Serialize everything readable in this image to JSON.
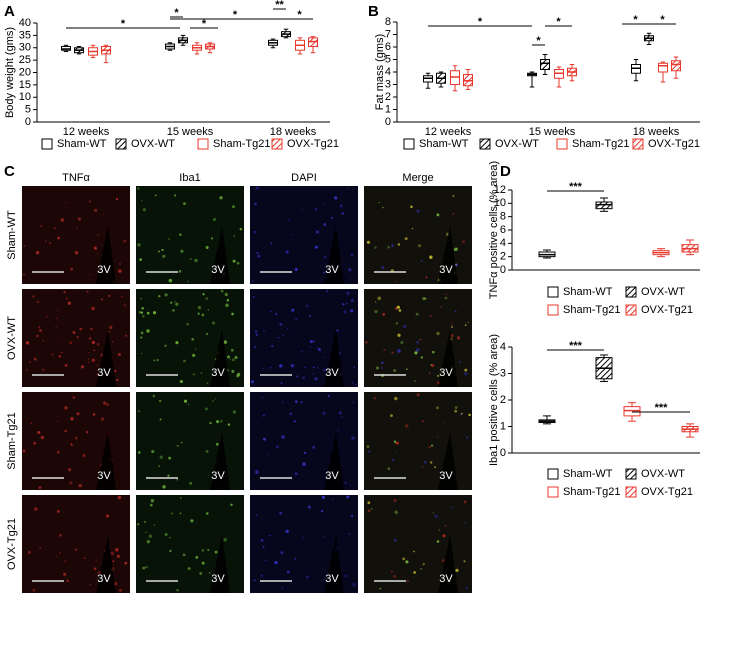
{
  "panel_labels": [
    "A",
    "B",
    "C",
    "D"
  ],
  "micrographs": {
    "columns": [
      "TNFα",
      "Iba1",
      "DAPI",
      "Merge"
    ],
    "rows": [
      "Sham-WT",
      "OVX-WT",
      "Sham-Tg21",
      "OVX-Tg21"
    ],
    "region_label": "3V"
  },
  "chart_data": [
    {
      "type": "box",
      "ylabel": "Body weight (gms)",
      "categories": [
        "12 weeks",
        "15 weeks",
        "18 weeks"
      ],
      "ylim": [
        0,
        40
      ],
      "yticks": [
        0,
        5,
        10,
        15,
        20,
        25,
        30,
        35,
        40
      ],
      "series": [
        {
          "name": "Sham-WT",
          "color": "#000000",
          "hatch": false,
          "min": [
            28.5,
            29,
            30
          ],
          "q1": [
            29,
            29.5,
            31
          ],
          "median": [
            29.5,
            30.5,
            32
          ],
          "q3": [
            30.5,
            31.5,
            33
          ],
          "max": [
            31,
            32,
            33.5
          ]
        },
        {
          "name": "OVX-WT",
          "color": "#000000",
          "hatch": true,
          "min": [
            27.5,
            31,
            34
          ],
          "q1": [
            28,
            32,
            34.5
          ],
          "median": [
            29,
            33,
            35.5
          ],
          "q3": [
            30,
            34,
            36.5
          ],
          "max": [
            30.5,
            35,
            37.5
          ]
        },
        {
          "name": "Sham-Tg21",
          "color": "#e8372c",
          "hatch": false,
          "min": [
            26,
            27.5,
            27.5
          ],
          "q1": [
            27,
            29,
            29
          ],
          "median": [
            28.5,
            30,
            31
          ],
          "q3": [
            30,
            31,
            33
          ],
          "max": [
            31,
            32,
            34
          ]
        },
        {
          "name": "OVX-Tg21",
          "color": "#e8372c",
          "hatch": true,
          "min": [
            24,
            28,
            28
          ],
          "q1": [
            27.5,
            29.5,
            30.5
          ],
          "median": [
            29,
            30.5,
            32.5
          ],
          "q3": [
            30.5,
            31.5,
            34
          ],
          "max": [
            31,
            32,
            34.5
          ]
        }
      ],
      "annotations": [
        "*",
        "*",
        "*",
        "*",
        "**",
        "*"
      ]
    },
    {
      "type": "box",
      "ylabel": "Fat mass (gms)",
      "categories": [
        "12 weeks",
        "15 weeks",
        "18 weeks"
      ],
      "ylim": [
        0,
        8
      ],
      "yticks": [
        0,
        1,
        2,
        3,
        4,
        5,
        6,
        7,
        8
      ],
      "series": [
        {
          "name": "Sham-WT",
          "color": "#000000",
          "hatch": false,
          "min": [
            2.7,
            2.8,
            3.3
          ],
          "q1": [
            3.2,
            3.7,
            3.9
          ],
          "median": [
            3.5,
            3.8,
            4.3
          ],
          "q3": [
            3.7,
            3.9,
            4.6
          ],
          "max": [
            3.9,
            4,
            5
          ]
        },
        {
          "name": "OVX-WT",
          "color": "#000000",
          "hatch": true,
          "min": [
            2.8,
            3.8,
            6.2
          ],
          "q1": [
            3.1,
            4.2,
            6.5
          ],
          "median": [
            3.5,
            4.7,
            6.7
          ],
          "q3": [
            3.9,
            5,
            6.9
          ],
          "max": [
            4,
            5.4,
            7.1
          ]
        },
        {
          "name": "Sham-Tg21",
          "color": "#e8372c",
          "hatch": false,
          "min": [
            2.5,
            2.8,
            3.2
          ],
          "q1": [
            3,
            3.5,
            4
          ],
          "median": [
            3.6,
            3.9,
            4.5
          ],
          "q3": [
            4.1,
            4.2,
            4.7
          ],
          "max": [
            4.5,
            4.4,
            4.8
          ]
        },
        {
          "name": "OVX-Tg21",
          "color": "#e8372c",
          "hatch": true,
          "min": [
            2.6,
            3.3,
            3.5
          ],
          "q1": [
            2.9,
            3.7,
            4.1
          ],
          "median": [
            3.3,
            4,
            4.6
          ],
          "q3": [
            3.8,
            4.3,
            4.9
          ],
          "max": [
            4.2,
            4.6,
            5.2
          ]
        }
      ],
      "annotations": [
        "*",
        "*",
        "*",
        "*",
        "*"
      ]
    },
    {
      "type": "box",
      "ylabel": "TNFα positive cells (% area)",
      "categories": [
        null
      ],
      "ylim": [
        0,
        12
      ],
      "yticks": [
        0,
        2,
        4,
        6,
        8,
        10,
        12
      ],
      "series": [
        {
          "name": "Sham-WT",
          "color": "#000000",
          "hatch": false,
          "min": [
            1.8
          ],
          "q1": [
            2
          ],
          "median": [
            2.3
          ],
          "q3": [
            2.7
          ],
          "max": [
            3
          ]
        },
        {
          "name": "OVX-WT",
          "color": "#000000",
          "hatch": true,
          "min": [
            8.8
          ],
          "q1": [
            9.2
          ],
          "median": [
            9.8
          ],
          "q3": [
            10.2
          ],
          "max": [
            10.8
          ]
        },
        {
          "name": "Sham-Tg21",
          "color": "#e8372c",
          "hatch": false,
          "min": [
            2
          ],
          "q1": [
            2.3
          ],
          "median": [
            2.6
          ],
          "q3": [
            2.9
          ],
          "max": [
            3.2
          ]
        },
        {
          "name": "OVX-Tg21",
          "color": "#e8372c",
          "hatch": true,
          "min": [
            2.3
          ],
          "q1": [
            2.7
          ],
          "median": [
            3.2
          ],
          "q3": [
            3.8
          ],
          "max": [
            4.5
          ]
        }
      ],
      "annotations": [
        "***"
      ]
    },
    {
      "type": "box",
      "ylabel": "Iba1 positive cells (% area)",
      "categories": [
        null
      ],
      "ylim": [
        0,
        4
      ],
      "yticks": [
        0,
        1,
        2,
        3,
        4
      ],
      "series": [
        {
          "name": "Sham-WT",
          "color": "#000000",
          "hatch": false,
          "min": [
            1.1
          ],
          "q1": [
            1.15
          ],
          "median": [
            1.2
          ],
          "q3": [
            1.25
          ],
          "max": [
            1.4
          ]
        },
        {
          "name": "OVX-WT",
          "color": "#000000",
          "hatch": true,
          "min": [
            2.7
          ],
          "q1": [
            2.8
          ],
          "median": [
            3.2
          ],
          "q3": [
            3.6
          ],
          "max": [
            3.7
          ]
        },
        {
          "name": "Sham-Tg21",
          "color": "#e8372c",
          "hatch": false,
          "min": [
            1.2
          ],
          "q1": [
            1.4
          ],
          "median": [
            1.6
          ],
          "q3": [
            1.75
          ],
          "max": [
            1.9
          ]
        },
        {
          "name": "OVX-Tg21",
          "color": "#e8372c",
          "hatch": true,
          "min": [
            0.6
          ],
          "q1": [
            0.8
          ],
          "median": [
            0.9
          ],
          "q3": [
            1
          ],
          "max": [
            1.1
          ]
        }
      ],
      "annotations": [
        "***",
        "***"
      ]
    }
  ]
}
